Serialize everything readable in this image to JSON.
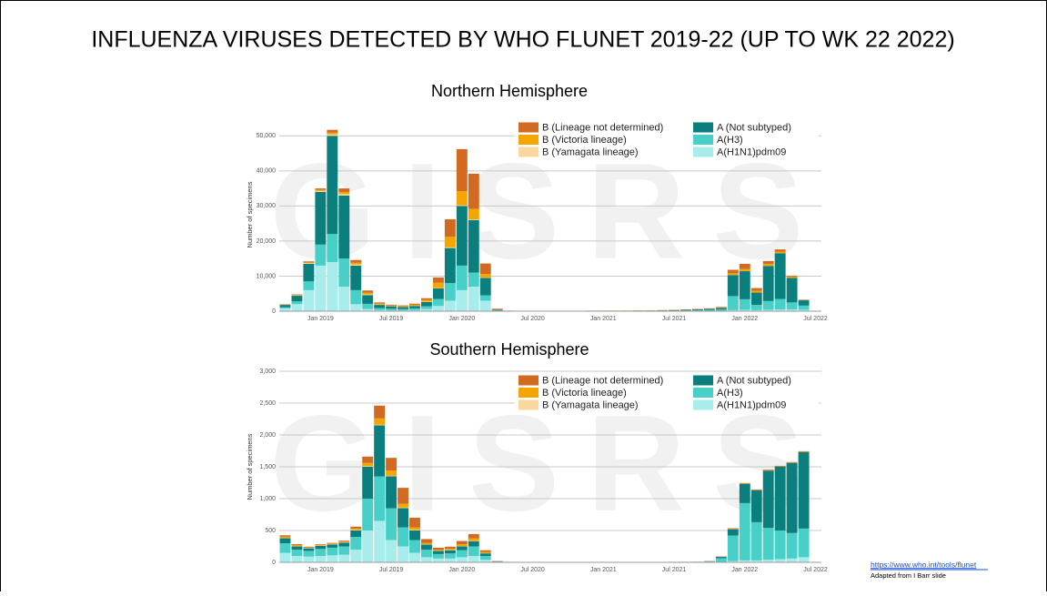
{
  "title": "INFLUENZA VIRUSES DETECTED BY WHO FLUNET 2019-22 (UP TO WK 22 2022)",
  "watermark": "GISRS",
  "source_url": "https://www.who.int/tools/flunet",
  "source_note": "Adapted from I Barr slide",
  "chart_data": [
    {
      "type": "stacked_bar",
      "title": "Northern Hemisphere",
      "y_label": "Number of specimens",
      "categories": [
        null,
        null,
        null,
        "Jan 2019",
        null,
        null,
        null,
        null,
        null,
        "Jul 2019",
        null,
        null,
        null,
        null,
        null,
        "Jan 2020",
        null,
        null,
        null,
        null,
        null,
        "Jul 2020",
        null,
        null,
        null,
        null,
        null,
        "Jan 2021",
        null,
        null,
        null,
        null,
        null,
        "Jul 2021",
        null,
        null,
        null,
        null,
        null,
        "Jan 2022",
        null,
        null,
        null,
        null,
        null,
        "Jul 2022"
      ],
      "ylim": [
        0,
        55000
      ],
      "yticks": [
        0,
        {
          "value": 10000,
          "label": "10,000"
        },
        {
          "value": 20000,
          "label": "20,000"
        },
        {
          "value": 30000,
          "label": "30,000"
        },
        {
          "value": 40000,
          "label": "40,000"
        },
        {
          "value": 50000,
          "label": "50,000"
        }
      ],
      "grid": true,
      "series": [
        {
          "name": "A(H1N1)pdm09",
          "color": "#a8ecec",
          "values": [
            800,
            2000,
            6000,
            13000,
            14000,
            7000,
            2000,
            600,
            300,
            200,
            200,
            300,
            600,
            1500,
            3000,
            6000,
            7000,
            3000,
            100,
            30,
            20,
            20,
            20,
            20,
            20,
            20,
            20,
            30,
            30,
            30,
            30,
            30,
            30,
            40,
            40,
            50,
            60,
            100,
            300,
            400,
            300,
            400,
            500,
            500,
            400,
            null
          ]
        },
        {
          "name": "A(H3)",
          "color": "#48cfc8",
          "values": [
            300,
            800,
            2500,
            6000,
            8000,
            8000,
            4000,
            1500,
            600,
            500,
            400,
            500,
            800,
            2000,
            5000,
            7000,
            4000,
            1500,
            100,
            30,
            20,
            20,
            20,
            20,
            30,
            30,
            40,
            40,
            40,
            50,
            60,
            60,
            80,
            120,
            150,
            200,
            300,
            400,
            4000,
            3000,
            1500,
            2500,
            3000,
            2000,
            1200,
            null
          ]
        },
        {
          "name": "A (Not subtyped)",
          "color": "#0b7f7d",
          "values": [
            700,
            1600,
            5000,
            15000,
            28000,
            18000,
            7000,
            2500,
            900,
            700,
            600,
            700,
            1200,
            3000,
            10000,
            17000,
            15000,
            5000,
            200,
            50,
            30,
            30,
            30,
            30,
            40,
            40,
            50,
            50,
            60,
            60,
            80,
            100,
            120,
            150,
            200,
            250,
            300,
            400,
            6000,
            8000,
            3500,
            10000,
            13000,
            7000,
            1500,
            null
          ]
        },
        {
          "name": "B (Yamagata lineage)",
          "color": "#fbd7a0",
          "values": [
            50,
            100,
            200,
            300,
            400,
            400,
            300,
            200,
            100,
            50,
            50,
            50,
            100,
            100,
            200,
            200,
            200,
            100,
            0,
            0,
            0,
            0,
            0,
            0,
            0,
            0,
            0,
            0,
            0,
            0,
            0,
            0,
            0,
            0,
            0,
            0,
            0,
            0,
            0,
            0,
            0,
            0,
            0,
            0,
            0,
            null
          ]
        },
        {
          "name": "B (Victoria lineage)",
          "color": "#f5a500",
          "values": [
            50,
            100,
            200,
            300,
            500,
            600,
            500,
            500,
            300,
            200,
            200,
            300,
            500,
            1500,
            3000,
            4000,
            3000,
            1000,
            100,
            20,
            10,
            10,
            10,
            10,
            10,
            10,
            20,
            20,
            20,
            20,
            30,
            30,
            30,
            40,
            40,
            50,
            60,
            100,
            500,
            600,
            500,
            600,
            500,
            300,
            100,
            null
          ]
        },
        {
          "name": "B (Lineage not determined)",
          "color": "#d26a22",
          "values": [
            100,
            200,
            300,
            400,
            800,
            1000,
            800,
            600,
            300,
            200,
            200,
            300,
            500,
            1500,
            5000,
            12000,
            10000,
            3000,
            200,
            30,
            10,
            10,
            10,
            10,
            20,
            20,
            30,
            30,
            30,
            30,
            40,
            40,
            50,
            60,
            80,
            100,
            120,
            200,
            1000,
            1500,
            800,
            800,
            600,
            300,
            100,
            null
          ]
        }
      ]
    },
    {
      "type": "stacked_bar",
      "title": "Southern Hemisphere",
      "y_label": "Number of specimens",
      "categories": [
        null,
        null,
        null,
        "Jan 2019",
        null,
        null,
        null,
        null,
        null,
        "Jul 2019",
        null,
        null,
        null,
        null,
        null,
        "Jan 2020",
        null,
        null,
        null,
        null,
        null,
        "Jul 2020",
        null,
        null,
        null,
        null,
        null,
        "Jan 2021",
        null,
        null,
        null,
        null,
        null,
        "Jul 2021",
        null,
        null,
        null,
        null,
        null,
        "Jan 2022",
        null,
        null,
        null,
        null,
        null,
        "Jul 2022"
      ],
      "ylim": [
        0,
        3000
      ],
      "yticks": [
        0,
        500,
        {
          "value": 1000,
          "label": "1,000"
        },
        {
          "value": 1500,
          "label": "1,500"
        },
        {
          "value": 2000,
          "label": "2,000"
        },
        {
          "value": 2500,
          "label": "2,500"
        },
        {
          "value": 3000,
          "label": "3,000"
        }
      ],
      "grid": true,
      "series": [
        {
          "name": "A(H1N1)pdm09",
          "color": "#a8ecec",
          "values": [
            150,
            100,
            90,
            100,
            110,
            120,
            200,
            500,
            650,
            350,
            250,
            150,
            80,
            60,
            60,
            80,
            100,
            40,
            5,
            2,
            1,
            1,
            1,
            1,
            1,
            1,
            1,
            1,
            1,
            1,
            1,
            1,
            1,
            2,
            2,
            2,
            3,
            5,
            20,
            30,
            30,
            40,
            50,
            60,
            80,
            null
          ]
        },
        {
          "name": "A(H3)",
          "color": "#48cfc8",
          "values": [
            150,
            100,
            90,
            110,
            120,
            130,
            200,
            500,
            700,
            500,
            300,
            200,
            120,
            70,
            80,
            110,
            150,
            60,
            5,
            2,
            1,
            1,
            1,
            1,
            1,
            1,
            1,
            1,
            2,
            2,
            2,
            3,
            3,
            3,
            4,
            5,
            10,
            60,
            400,
            900,
            600,
            500,
            450,
            400,
            450,
            null
          ]
        },
        {
          "name": "A (Not subtyped)",
          "color": "#0b7f7d",
          "values": [
            80,
            50,
            40,
            50,
            50,
            60,
            100,
            500,
            800,
            500,
            300,
            150,
            80,
            50,
            50,
            60,
            80,
            40,
            5,
            2,
            1,
            1,
            1,
            1,
            1,
            1,
            1,
            1,
            1,
            1,
            1,
            1,
            1,
            1,
            1,
            1,
            5,
            20,
            100,
            300,
            500,
            900,
            1000,
            1100,
            1200,
            null
          ]
        },
        {
          "name": "B (Yamagata lineage)",
          "color": "#fbd7a0",
          "values": [
            5,
            5,
            5,
            5,
            5,
            5,
            10,
            10,
            10,
            10,
            10,
            10,
            5,
            5,
            5,
            5,
            5,
            0,
            0,
            0,
            0,
            0,
            0,
            0,
            0,
            0,
            0,
            0,
            0,
            0,
            0,
            0,
            0,
            0,
            0,
            0,
            0,
            0,
            0,
            0,
            0,
            0,
            0,
            0,
            0,
            null
          ]
        },
        {
          "name": "B (Victoria lineage)",
          "color": "#f5a500",
          "values": [
            20,
            15,
            10,
            10,
            10,
            10,
            20,
            50,
            100,
            80,
            60,
            40,
            20,
            15,
            20,
            30,
            40,
            20,
            2,
            1,
            1,
            1,
            1,
            1,
            1,
            1,
            1,
            1,
            1,
            1,
            1,
            1,
            1,
            1,
            1,
            1,
            2,
            2,
            5,
            5,
            5,
            5,
            5,
            5,
            5,
            null
          ]
        },
        {
          "name": "B (Lineage not determined)",
          "color": "#d26a22",
          "values": [
            20,
            15,
            10,
            10,
            10,
            15,
            30,
            100,
            200,
            200,
            250,
            150,
            60,
            30,
            30,
            50,
            70,
            30,
            5,
            1,
            1,
            1,
            1,
            1,
            1,
            1,
            1,
            1,
            1,
            1,
            1,
            1,
            1,
            1,
            1,
            1,
            2,
            5,
            10,
            10,
            10,
            10,
            10,
            10,
            10,
            null
          ]
        }
      ]
    }
  ]
}
